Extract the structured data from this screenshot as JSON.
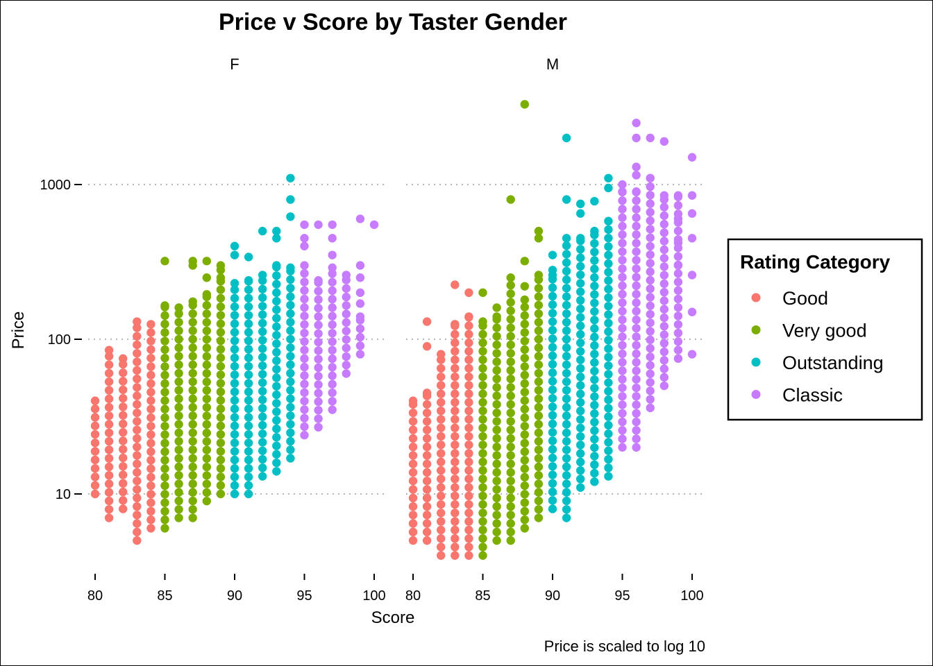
{
  "chart_data": {
    "type": "scatter",
    "title": "Price v Score by Taster Gender",
    "xlabel": "Score",
    "ylabel": "Price",
    "caption": "Price is scaled to log 10",
    "y_scale": "log10",
    "ylim": [
      4,
      3500
    ],
    "xlim": [
      80,
      100
    ],
    "x_ticks": [
      "80",
      "85",
      "90",
      "95",
      "100"
    ],
    "y_ticks": [
      "10",
      "100",
      "1000"
    ],
    "grid": "horizontal dotted",
    "legend": {
      "title": "Rating Category",
      "position": "right",
      "entries": [
        {
          "label": "Good",
          "color": "#F8766D"
        },
        {
          "label": "Very good",
          "color": "#7CAE00"
        },
        {
          "label": "Outstanding",
          "color": "#00BFC4"
        },
        {
          "label": "Classic",
          "color": "#C77CFF"
        }
      ]
    },
    "category_by_score": {
      "Good": [
        80,
        84
      ],
      "Very good": [
        85,
        89
      ],
      "Outstanding": [
        90,
        94
      ],
      "Classic": [
        95,
        100
      ]
    },
    "panels": [
      {
        "label": "F",
        "columns": [
          {
            "x": 80,
            "min": 10,
            "max": 40
          },
          {
            "x": 81,
            "min": 7,
            "max": 85
          },
          {
            "x": 82,
            "min": 8,
            "max": 75
          },
          {
            "x": 83,
            "min": 5,
            "max": 130
          },
          {
            "x": 84,
            "min": 6,
            "max": 125
          },
          {
            "x": 85,
            "min": 6,
            "max": 165
          },
          {
            "x": 86,
            "min": 7,
            "max": 160
          },
          {
            "x": 87,
            "min": 7,
            "max": 175
          },
          {
            "x": 88,
            "min": 9,
            "max": 195
          },
          {
            "x": 89,
            "min": 10,
            "max": 250
          },
          {
            "x": 90,
            "min": 10,
            "max": 230
          },
          {
            "x": 91,
            "min": 10,
            "max": 240
          },
          {
            "x": 92,
            "min": 13,
            "max": 260
          },
          {
            "x": 93,
            "min": 14,
            "max": 300
          },
          {
            "x": 94,
            "min": 17,
            "max": 290
          },
          {
            "x": 95,
            "min": 24,
            "max": 300
          },
          {
            "x": 96,
            "min": 27,
            "max": 240
          },
          {
            "x": 97,
            "min": 35,
            "max": 290
          },
          {
            "x": 98,
            "min": 60,
            "max": 260
          },
          {
            "x": 99,
            "min": 80,
            "max": 140
          }
        ],
        "outliers": [
          {
            "x": 85,
            "y": 320
          },
          {
            "x": 87,
            "y": 320
          },
          {
            "x": 87,
            "y": 300
          },
          {
            "x": 88,
            "y": 320
          },
          {
            "x": 88,
            "y": 250
          },
          {
            "x": 89,
            "y": 300
          },
          {
            "x": 89,
            "y": 280
          },
          {
            "x": 90,
            "y": 400
          },
          {
            "x": 90,
            "y": 350
          },
          {
            "x": 91,
            "y": 340
          },
          {
            "x": 92,
            "y": 500
          },
          {
            "x": 93,
            "y": 500
          },
          {
            "x": 93,
            "y": 450
          },
          {
            "x": 94,
            "y": 1100
          },
          {
            "x": 94,
            "y": 800
          },
          {
            "x": 94,
            "y": 620
          },
          {
            "x": 95,
            "y": 550
          },
          {
            "x": 95,
            "y": 450
          },
          {
            "x": 95,
            "y": 400
          },
          {
            "x": 96,
            "y": 550
          },
          {
            "x": 97,
            "y": 550
          },
          {
            "x": 97,
            "y": 450
          },
          {
            "x": 97,
            "y": 350
          },
          {
            "x": 99,
            "y": 600
          },
          {
            "x": 99,
            "y": 300
          },
          {
            "x": 99,
            "y": 250
          },
          {
            "x": 99,
            "y": 200
          },
          {
            "x": 99,
            "y": 170
          },
          {
            "x": 100,
            "y": 550
          }
        ]
      },
      {
        "label": "M",
        "columns": [
          {
            "x": 80,
            "min": 5,
            "max": 40
          },
          {
            "x": 81,
            "min": 5,
            "max": 45
          },
          {
            "x": 82,
            "min": 4,
            "max": 80
          },
          {
            "x": 83,
            "min": 4,
            "max": 125
          },
          {
            "x": 84,
            "min": 4,
            "max": 140
          },
          {
            "x": 85,
            "min": 4,
            "max": 130
          },
          {
            "x": 86,
            "min": 5,
            "max": 140
          },
          {
            "x": 87,
            "min": 5,
            "max": 250
          },
          {
            "x": 88,
            "min": 6,
            "max": 180
          },
          {
            "x": 89,
            "min": 7,
            "max": 260
          },
          {
            "x": 90,
            "min": 8,
            "max": 260
          },
          {
            "x": 91,
            "min": 7,
            "max": 450
          },
          {
            "x": 92,
            "min": 11,
            "max": 450
          },
          {
            "x": 93,
            "min": 12,
            "max": 500
          },
          {
            "x": 94,
            "min": 13,
            "max": 580
          },
          {
            "x": 95,
            "min": 20,
            "max": 1000
          },
          {
            "x": 96,
            "min": 20,
            "max": 900
          },
          {
            "x": 97,
            "min": 36,
            "max": 1100
          },
          {
            "x": 98,
            "min": 50,
            "max": 800
          },
          {
            "x": 99,
            "min": 75,
            "max": 850
          }
        ],
        "outliers": [
          {
            "x": 81,
            "y": 130
          },
          {
            "x": 81,
            "y": 90
          },
          {
            "x": 83,
            "y": 225
          },
          {
            "x": 83,
            "y": 125
          },
          {
            "x": 84,
            "y": 200
          },
          {
            "x": 85,
            "y": 200
          },
          {
            "x": 86,
            "y": 160
          },
          {
            "x": 87,
            "y": 800
          },
          {
            "x": 88,
            "y": 3300
          },
          {
            "x": 88,
            "y": 320
          },
          {
            "x": 88,
            "y": 220
          },
          {
            "x": 89,
            "y": 500
          },
          {
            "x": 89,
            "y": 450
          },
          {
            "x": 90,
            "y": 350
          },
          {
            "x": 90,
            "y": 280
          },
          {
            "x": 91,
            "y": 2000
          },
          {
            "x": 91,
            "y": 800
          },
          {
            "x": 92,
            "y": 750
          },
          {
            "x": 92,
            "y": 650
          },
          {
            "x": 93,
            "y": 780
          },
          {
            "x": 94,
            "y": 1100
          },
          {
            "x": 94,
            "y": 950
          },
          {
            "x": 95,
            "y": 900
          },
          {
            "x": 96,
            "y": 2500
          },
          {
            "x": 96,
            "y": 2000
          },
          {
            "x": 96,
            "y": 1300
          },
          {
            "x": 96,
            "y": 1150
          },
          {
            "x": 97,
            "y": 2000
          },
          {
            "x": 98,
            "y": 1900
          },
          {
            "x": 98,
            "y": 850
          },
          {
            "x": 99,
            "y": 600
          },
          {
            "x": 99,
            "y": 420
          },
          {
            "x": 99,
            "y": 300
          },
          {
            "x": 100,
            "y": 1500
          },
          {
            "x": 100,
            "y": 850
          },
          {
            "x": 100,
            "y": 650
          },
          {
            "x": 100,
            "y": 450
          },
          {
            "x": 100,
            "y": 260
          },
          {
            "x": 100,
            "y": 150
          },
          {
            "x": 100,
            "y": 80
          }
        ]
      }
    ]
  }
}
